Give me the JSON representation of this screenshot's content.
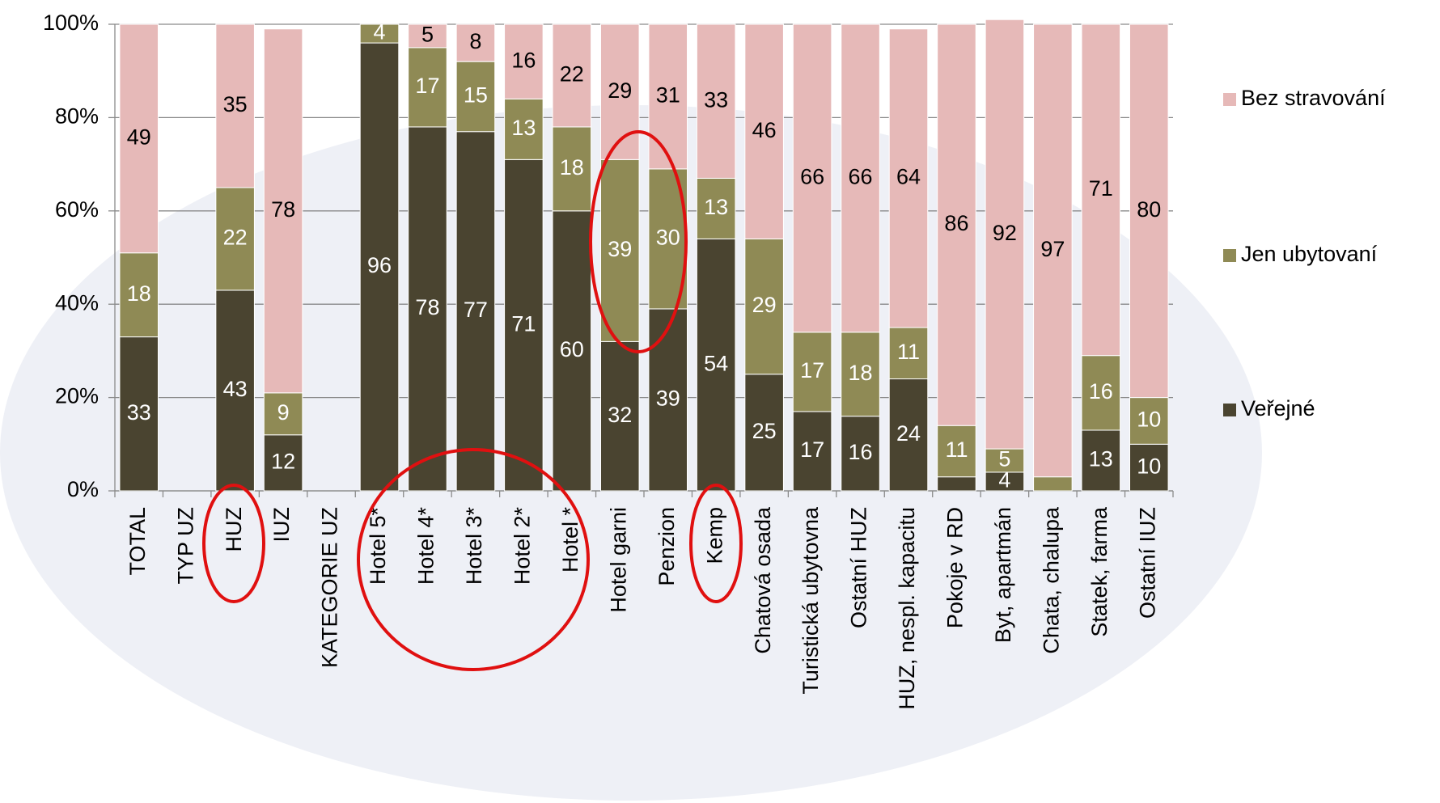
{
  "chart_data": {
    "type": "stacked_bar",
    "categories": [
      "TOTAL",
      "TYP UZ",
      "HUZ",
      "IUZ",
      "KATEGORIE UZ",
      "Hotel 5*",
      "Hotel 4*",
      "Hotel 3*",
      "Hotel 2*",
      "Hotel *",
      "Hotel garni",
      "Penzion",
      "Kemp",
      "Chatová osada",
      "Turistická ubytovna",
      "Ostatní HUZ",
      "HUZ, nespl. kapacitu",
      "Pokoje v RD",
      "Byt, apartmán",
      "Chata, chalupa",
      "Statek, farma",
      "Ostatní IUZ"
    ],
    "series": [
      {
        "name": "Veřejné",
        "color": "#4a4430",
        "values": [
          33,
          null,
          43,
          12,
          null,
          96,
          78,
          77,
          71,
          60,
          32,
          39,
          54,
          25,
          17,
          16,
          24,
          3,
          4,
          null,
          13,
          10
        ],
        "value_labels": [
          "33",
          null,
          "43",
          "12",
          null,
          "96",
          "78",
          "77",
          "71",
          "60",
          "32",
          "39",
          "54",
          "25",
          "17",
          "16",
          "24",
          null,
          "4",
          null,
          "13",
          "10"
        ]
      },
      {
        "name": "Jen ubytovaní",
        "color": "#8f8a55",
        "values": [
          18,
          null,
          22,
          9,
          null,
          4,
          17,
          15,
          13,
          18,
          39,
          30,
          13,
          29,
          17,
          18,
          11,
          11,
          5,
          3,
          16,
          10
        ],
        "value_labels": [
          "18",
          null,
          "22",
          "9",
          null,
          "4",
          "17",
          "15",
          "13",
          "18",
          "39",
          "30",
          "13",
          "29",
          "17",
          "18",
          "11",
          "11",
          "5",
          null,
          "16",
          "10"
        ]
      },
      {
        "name": "Bez stravování",
        "color": "#e6b9b8",
        "values": [
          49,
          null,
          35,
          78,
          null,
          null,
          5,
          8,
          16,
          22,
          29,
          31,
          33,
          46,
          66,
          66,
          64,
          86,
          92,
          97,
          71,
          80
        ],
        "value_labels": [
          "49",
          null,
          "35",
          "78",
          null,
          null,
          "5",
          "8",
          "16",
          "22",
          "29",
          "31",
          "33",
          "46",
          "66",
          "66",
          "64",
          "86",
          "92",
          "97",
          "71",
          "80"
        ]
      }
    ],
    "ylim": [
      0,
      100
    ],
    "yticks": [
      {
        "value": 0,
        "label": "0%"
      },
      {
        "value": 20,
        "label": "20%"
      },
      {
        "value": 40,
        "label": "40%"
      },
      {
        "value": 60,
        "label": "60%"
      },
      {
        "value": 80,
        "label": "80%"
      },
      {
        "value": 100,
        "label": "100%"
      }
    ],
    "grid": true,
    "legend": "right"
  }
}
